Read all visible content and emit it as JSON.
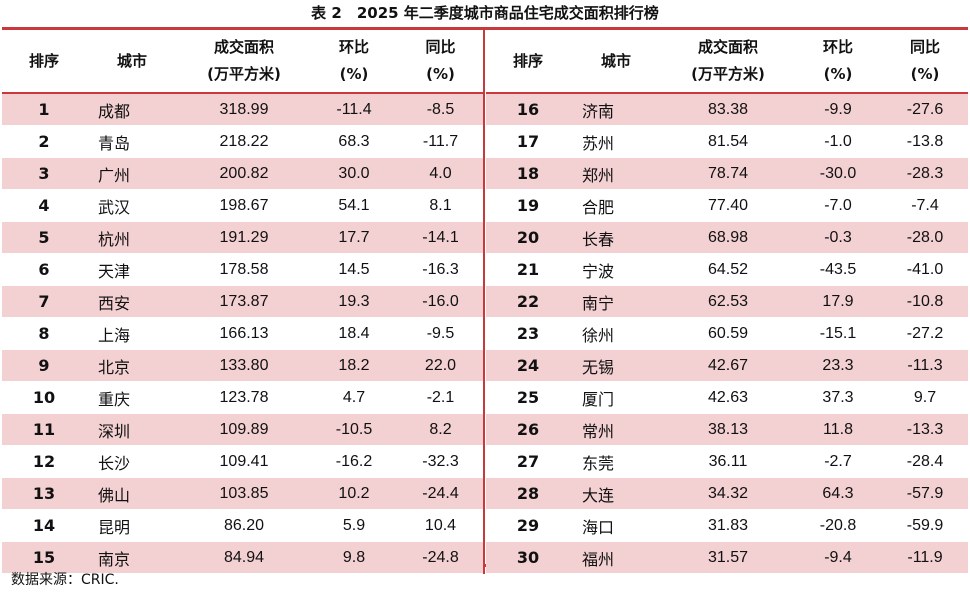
{
  "title": "表 2　2025 年二季度城市商品住宅成交面积排行榜",
  "headers": {
    "rank": "排序",
    "city": "城市",
    "area_line1": "成交面积",
    "area_line2": "(万平方米)",
    "qoq_line1": "环比",
    "qoq_line2": "(%)",
    "yoy_line1": "同比",
    "yoy_line2": "(%)"
  },
  "left_rows": [
    {
      "rank": "1",
      "city": "成都",
      "area": "318.99",
      "qoq": "-11.4",
      "yoy": "-8.5"
    },
    {
      "rank": "2",
      "city": "青岛",
      "area": "218.22",
      "qoq": "68.3",
      "yoy": "-11.7"
    },
    {
      "rank": "3",
      "city": "广州",
      "area": "200.82",
      "qoq": "30.0",
      "yoy": "4.0"
    },
    {
      "rank": "4",
      "city": "武汉",
      "area": "198.67",
      "qoq": "54.1",
      "yoy": "8.1"
    },
    {
      "rank": "5",
      "city": "杭州",
      "area": "191.29",
      "qoq": "17.7",
      "yoy": "-14.1"
    },
    {
      "rank": "6",
      "city": "天津",
      "area": "178.58",
      "qoq": "14.5",
      "yoy": "-16.3"
    },
    {
      "rank": "7",
      "city": "西安",
      "area": "173.87",
      "qoq": "19.3",
      "yoy": "-16.0"
    },
    {
      "rank": "8",
      "city": "上海",
      "area": "166.13",
      "qoq": "18.4",
      "yoy": "-9.5"
    },
    {
      "rank": "9",
      "city": "北京",
      "area": "133.80",
      "qoq": "18.2",
      "yoy": "22.0"
    },
    {
      "rank": "10",
      "city": "重庆",
      "area": "123.78",
      "qoq": "4.7",
      "yoy": "-2.1"
    },
    {
      "rank": "11",
      "city": "深圳",
      "area": "109.89",
      "qoq": "-10.5",
      "yoy": "8.2"
    },
    {
      "rank": "12",
      "city": "长沙",
      "area": "109.41",
      "qoq": "-16.2",
      "yoy": "-32.3"
    },
    {
      "rank": "13",
      "city": "佛山",
      "area": "103.85",
      "qoq": "10.2",
      "yoy": "-24.4"
    },
    {
      "rank": "14",
      "city": "昆明",
      "area": "86.20",
      "qoq": "5.9",
      "yoy": "10.4"
    },
    {
      "rank": "15",
      "city": "南京",
      "area": "84.94",
      "qoq": "9.8",
      "yoy": "-24.8"
    }
  ],
  "right_rows": [
    {
      "rank": "16",
      "city": "济南",
      "area": "83.38",
      "qoq": "-9.9",
      "yoy": "-27.6"
    },
    {
      "rank": "17",
      "city": "苏州",
      "area": "81.54",
      "qoq": "-1.0",
      "yoy": "-13.8"
    },
    {
      "rank": "18",
      "city": "郑州",
      "area": "78.74",
      "qoq": "-30.0",
      "yoy": "-28.3"
    },
    {
      "rank": "19",
      "city": "合肥",
      "area": "77.40",
      "qoq": "-7.0",
      "yoy": "-7.4"
    },
    {
      "rank": "20",
      "city": "长春",
      "area": "68.98",
      "qoq": "-0.3",
      "yoy": "-28.0"
    },
    {
      "rank": "21",
      "city": "宁波",
      "area": "64.52",
      "qoq": "-43.5",
      "yoy": "-41.0"
    },
    {
      "rank": "22",
      "city": "南宁",
      "area": "62.53",
      "qoq": "17.9",
      "yoy": "-10.8"
    },
    {
      "rank": "23",
      "city": "徐州",
      "area": "60.59",
      "qoq": "-15.1",
      "yoy": "-27.2"
    },
    {
      "rank": "24",
      "city": "无锡",
      "area": "42.67",
      "qoq": "23.3",
      "yoy": "-11.3"
    },
    {
      "rank": "25",
      "city": "厦门",
      "area": "42.63",
      "qoq": "37.3",
      "yoy": "9.7"
    },
    {
      "rank": "26",
      "city": "常州",
      "area": "38.13",
      "qoq": "11.8",
      "yoy": "-13.3"
    },
    {
      "rank": "27",
      "city": "东莞",
      "area": "36.11",
      "qoq": "-2.7",
      "yoy": "-28.4"
    },
    {
      "rank": "28",
      "city": "大连",
      "area": "34.32",
      "qoq": "64.3",
      "yoy": "-57.9"
    },
    {
      "rank": "29",
      "city": "海口",
      "area": "31.83",
      "qoq": "-20.8",
      "yoy": "-59.9"
    },
    {
      "rank": "30",
      "city": "福州",
      "area": "31.57",
      "qoq": "-9.4",
      "yoy": "-11.9"
    }
  ],
  "source": "数据来源：CRIC.",
  "colors": {
    "accent": "#c9383c",
    "stripe": "#f3d0d1"
  }
}
